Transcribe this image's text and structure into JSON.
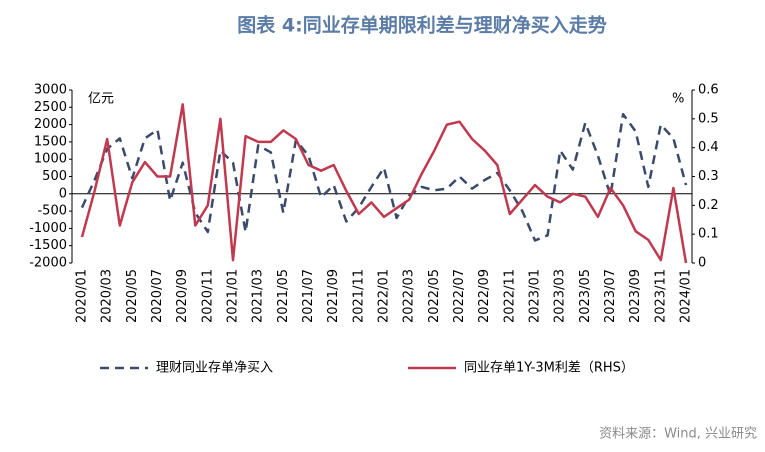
{
  "chart_data": {
    "type": "line",
    "title": "图表 4:同业存单期限利差与理财净买入走势",
    "ylabel": "亿元",
    "y2label": "%",
    "source": "资料来源：Wind, 兴业研究",
    "categories": [
      "2020/01",
      null,
      "2020/03",
      null,
      "2020/05",
      null,
      "2020/07",
      null,
      "2020/09",
      null,
      "2020/11",
      null,
      "2021/01",
      null,
      "2021/03",
      null,
      "2021/05",
      null,
      "2021/07",
      null,
      "2021/09",
      null,
      "2021/11",
      null,
      "2022/01",
      null,
      "2022/03",
      null,
      "2022/05",
      null,
      "2022/07",
      null,
      "2022/09",
      null,
      "2022/11",
      null,
      "2023/01",
      null,
      "2023/03",
      null,
      "2023/05",
      null,
      "2023/07",
      null,
      "2023/09",
      null,
      "2023/11",
      null,
      "2024/01"
    ],
    "ylim": [
      -2000,
      3000
    ],
    "yticks": [
      -2000,
      -1500,
      -1000,
      -500,
      0,
      500,
      1000,
      1500,
      2000,
      2500,
      3000
    ],
    "y2lim": [
      0,
      0.6
    ],
    "y2ticks": [
      0,
      0.1,
      0.2,
      0.3,
      0.4,
      0.5,
      0.6
    ],
    "legend": "bottom",
    "series": [
      {
        "name": "理财同业存单净买入",
        "color": "#3b4a6b",
        "dash": true,
        "values": [
          -400,
          400,
          1300,
          1600,
          450,
          1600,
          1850,
          -200,
          900,
          -550,
          -1100,
          1250,
          900,
          -1100,
          1400,
          1200,
          -550,
          1550,
          1100,
          -100,
          250,
          -800,
          -400,
          200,
          750,
          -700,
          -50,
          200,
          100,
          150,
          500,
          150,
          400,
          600,
          100,
          -500,
          -1350,
          -1200,
          1250,
          700,
          2050,
          1100,
          -50,
          2300,
          1800,
          200,
          2000,
          1600,
          250
        ]
      },
      {
        "name": "同业存单1Y-3M利差（RHS）",
        "color": "#c0394f",
        "axis": "y2",
        "values": [
          0.09,
          0.25,
          0.43,
          0.13,
          0.28,
          0.35,
          0.3,
          0.3,
          0.55,
          0.13,
          0.2,
          0.5,
          0.01,
          0.44,
          0.42,
          0.42,
          0.46,
          0.43,
          0.34,
          0.32,
          0.34,
          0.25,
          0.17,
          0.21,
          0.16,
          0.19,
          0.22,
          0.31,
          0.39,
          0.48,
          0.49,
          0.43,
          0.39,
          0.34,
          0.17,
          0.22,
          0.27,
          0.23,
          0.21,
          0.24,
          0.23,
          0.16,
          0.26,
          0.2,
          0.11,
          0.08,
          0.01,
          0.26,
          0.0
        ]
      }
    ]
  }
}
